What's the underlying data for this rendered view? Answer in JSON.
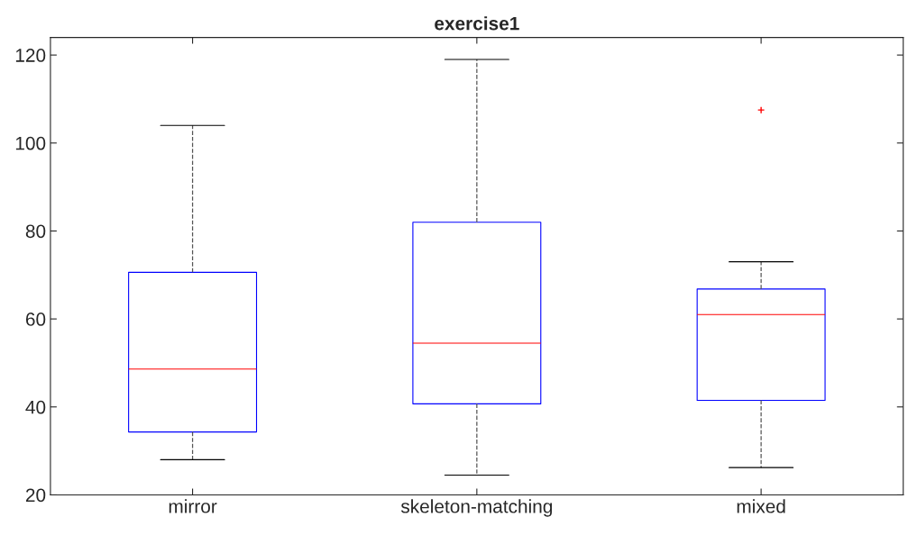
{
  "chart_data": {
    "type": "box",
    "title": "exercise1",
    "categories": [
      "mirror",
      "skeleton-matching",
      "mixed"
    ],
    "series": [
      {
        "color": "#0000ff",
        "boxes": [
          {
            "low": 28,
            "q1": 34.3,
            "median": 48.6,
            "q3": 70.6,
            "high": 104
          },
          {
            "low": 24.5,
            "q1": 40.7,
            "median": 54.5,
            "q3": 82,
            "high": 119
          },
          {
            "low": 26.2,
            "q1": 41.5,
            "median": 61,
            "q3": 66.8,
            "high": 73,
            "outliers": [
              107.5
            ]
          }
        ]
      }
    ],
    "ylim": [
      20,
      124
    ],
    "yticks": [
      20,
      40,
      60,
      80,
      100,
      120
    ],
    "grid": false,
    "marker": "cross"
  }
}
